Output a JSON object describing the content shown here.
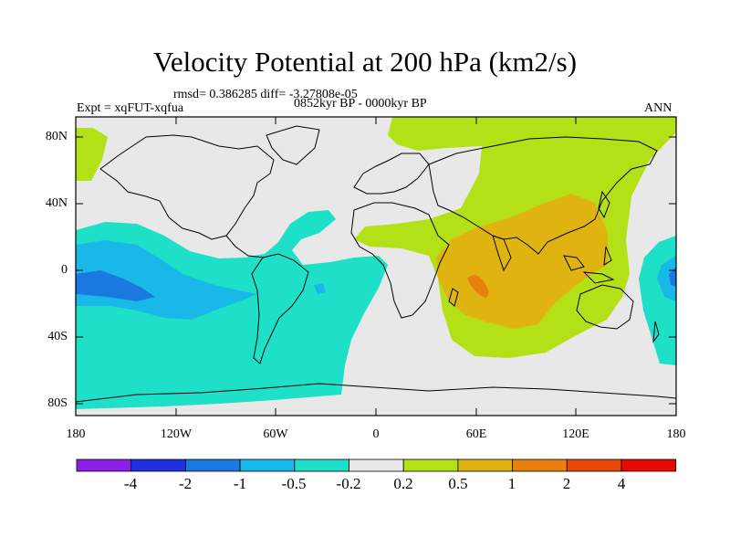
{
  "plot": {
    "title": "Velocity Potential at 200 hPa (km2/s)",
    "stats": "rmsd= 0.386285 diff= -3.27808e-05",
    "experiment": "Expt = xqFUT-xqfua",
    "period": "0852kyr BP - 0000kyr BP",
    "season": "ANN"
  },
  "axes": {
    "lat_ticks": [
      "80N",
      "40N",
      "0",
      "40S",
      "80S"
    ],
    "lon_ticks": [
      "180",
      "120W",
      "60W",
      "0",
      "60E",
      "120E",
      "180"
    ]
  },
  "colorbar": {
    "colors": [
      "#8a20e6",
      "#2030e0",
      "#1a78e0",
      "#18b8e8",
      "#1ee0c8",
      "#e8e8e8",
      "#b4e018",
      "#e0b410",
      "#e88010",
      "#e84808",
      "#e80808"
    ],
    "labels": [
      "-4",
      "-2",
      "-1",
      "-0.5",
      "-0.2",
      "0.2",
      "0.5",
      "1",
      "2",
      "4"
    ]
  }
}
